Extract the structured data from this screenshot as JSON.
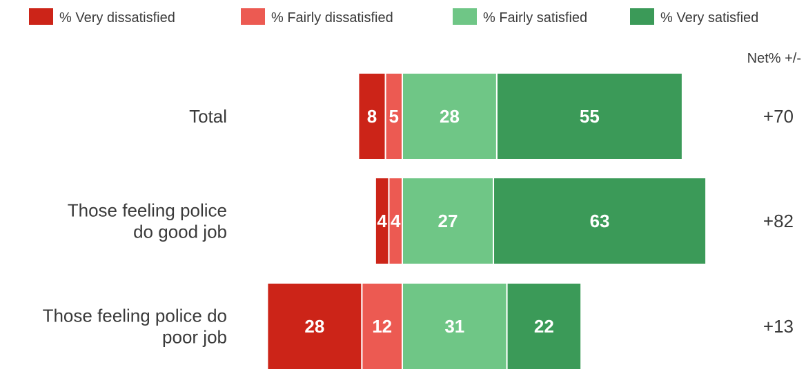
{
  "chart_data": {
    "type": "bar",
    "orientation": "horizontal",
    "stacked": "diverging",
    "categories": [
      [
        "Total"
      ],
      [
        "Those feeling  police",
        "do good job"
      ],
      [
        "Those feeling police do",
        "poor job"
      ]
    ],
    "series": [
      {
        "name": "% Very dissatisfied",
        "color": "#cc2418",
        "side": "negative",
        "values": [
          8,
          4,
          28
        ]
      },
      {
        "name": "% Fairly dissatisfied",
        "color": "#ec5a52",
        "side": "negative",
        "values": [
          5,
          4,
          12
        ]
      },
      {
        "name": "% Fairly satisfied",
        "color": "#6fc686",
        "side": "positive",
        "values": [
          28,
          27,
          31
        ]
      },
      {
        "name": "% Very satisfied",
        "color": "#3b9a58",
        "side": "positive",
        "values": [
          55,
          63,
          22
        ]
      }
    ],
    "net_header": "Net% +/-",
    "net_values": [
      "+70",
      "+82",
      "+13"
    ],
    "legend_position": "top",
    "grid": false
  }
}
